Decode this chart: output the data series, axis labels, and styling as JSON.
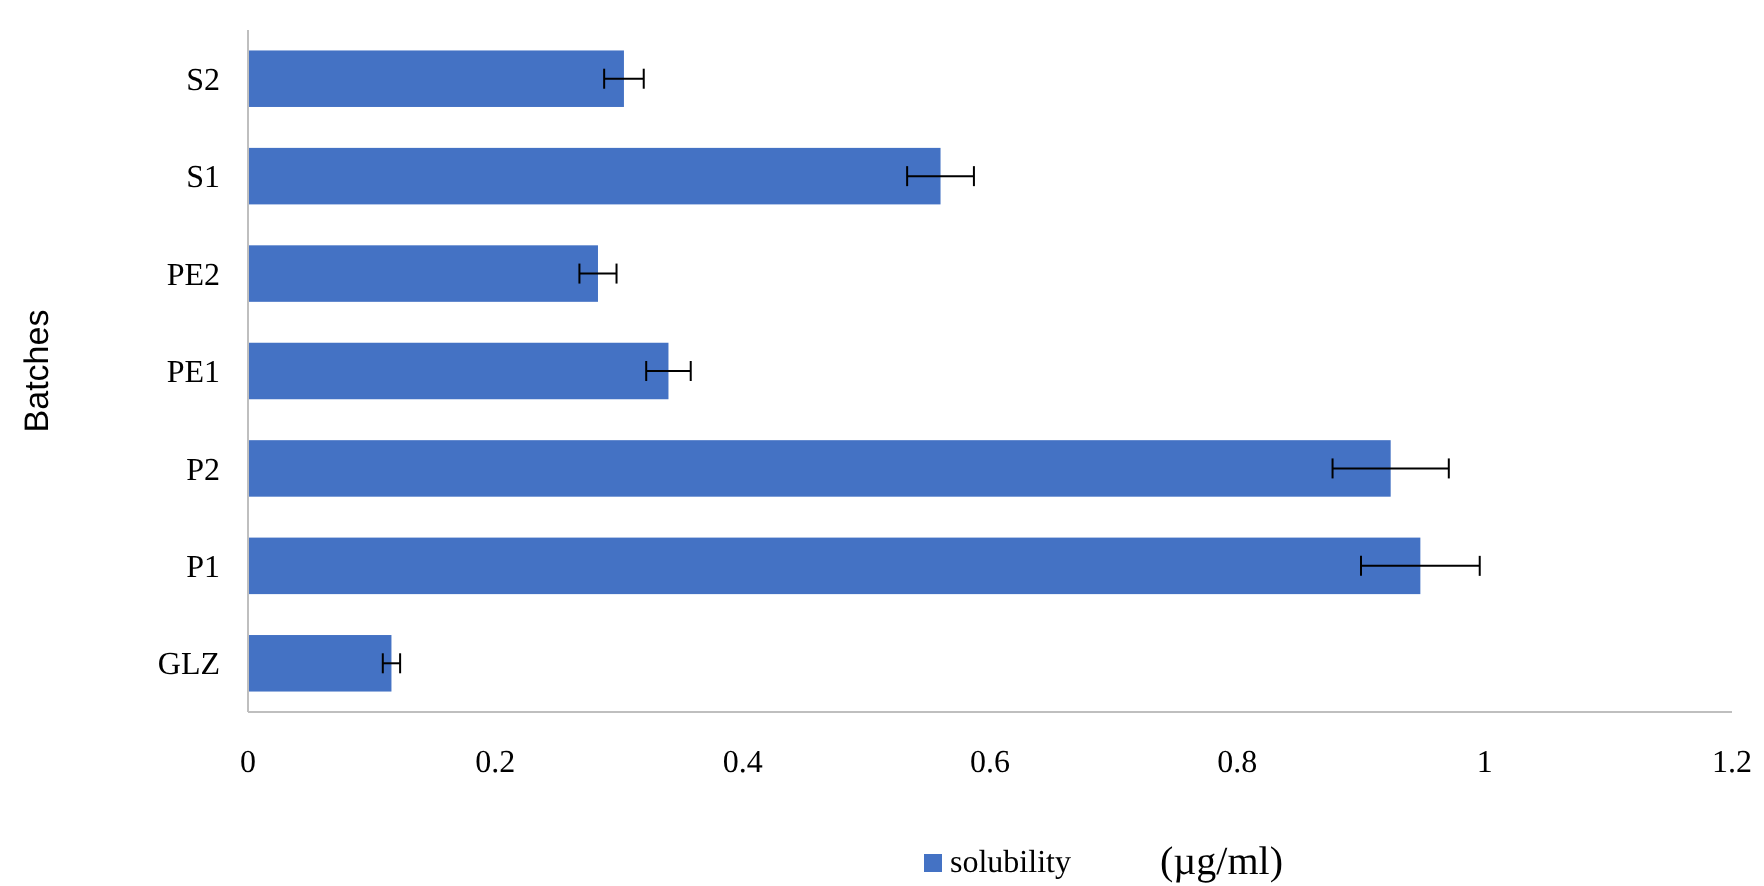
{
  "chart_data": {
    "type": "bar",
    "orientation": "horizontal",
    "ylabel": "Batches",
    "xlabel": "(µg/ml)",
    "categories": [
      "S2",
      "S1",
      "PE2",
      "PE1",
      "P2",
      "P1",
      "GLZ"
    ],
    "series": [
      {
        "name": "solubility",
        "color": "#4472c4",
        "values": [
          0.304,
          0.56,
          0.283,
          0.34,
          0.924,
          0.948,
          0.116
        ],
        "errors": [
          0.016,
          0.027,
          0.015,
          0.018,
          0.047,
          0.048,
          0.007
        ]
      }
    ],
    "xlim": [
      0,
      1.2
    ],
    "xticks": [
      0,
      0.2,
      0.4,
      0.6,
      0.8,
      1,
      1.2
    ],
    "grid": false,
    "legend": "bottom"
  }
}
